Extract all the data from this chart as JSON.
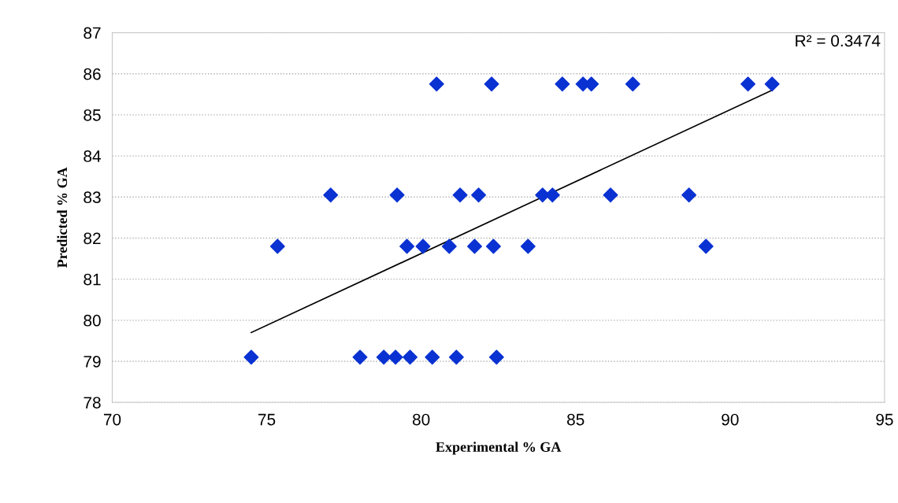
{
  "chart_data": {
    "type": "scatter",
    "xlabel": "Experimental % GA",
    "ylabel": "Predicted % GA",
    "xlim": [
      70,
      95
    ],
    "xticks": [
      70,
      75,
      80,
      85,
      90,
      95
    ],
    "ylim": [
      78,
      87
    ],
    "yticks": [
      78,
      79,
      80,
      81,
      82,
      83,
      84,
      85,
      86,
      87
    ],
    "grid": "y",
    "legend": false,
    "marker": "diamond",
    "annotations": [
      "R² = 0.3474"
    ],
    "series": [
      {
        "color": "#0a32d2",
        "x": [
          80.5,
          82.28,
          84.57,
          85.24,
          85.51,
          86.85,
          90.58,
          91.36,
          77.07,
          79.22,
          81.26,
          81.86,
          83.93,
          84.25,
          86.13,
          88.67,
          75.35,
          79.54,
          80.06,
          80.91,
          81.73,
          82.34,
          83.46,
          89.22,
          74.5,
          78.02,
          78.79,
          79.17,
          79.64,
          80.36,
          81.14,
          82.44
        ],
        "values": [
          85.75,
          85.75,
          85.75,
          85.75,
          85.75,
          85.75,
          85.75,
          85.75,
          83.05,
          83.05,
          83.05,
          83.05,
          83.05,
          83.05,
          83.05,
          83.05,
          81.8,
          81.8,
          81.8,
          81.8,
          81.8,
          81.8,
          81.8,
          81.8,
          79.1,
          79.1,
          79.1,
          79.1,
          79.1,
          79.1,
          79.1,
          79.1
        ]
      },
      {
        "type": "line",
        "color": "#000000",
        "x": [
          74.5,
          91.36
        ],
        "values": [
          79.7,
          85.6
        ],
        "marker": "none"
      }
    ]
  }
}
